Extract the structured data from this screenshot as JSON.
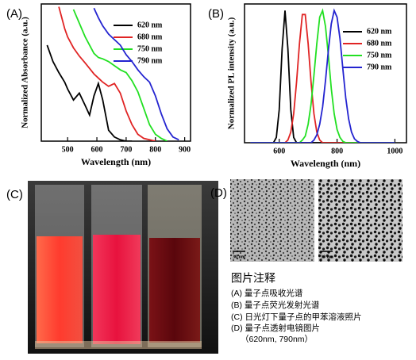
{
  "chart_data": [
    {
      "type": "line",
      "label": "(A)",
      "x_label": "Wavelength (nm)",
      "y_label": "Normalized Absorbance (a.u.)",
      "x": [
        430,
        450,
        470,
        490,
        500,
        520,
        540,
        560,
        575,
        590,
        605,
        620,
        640,
        660,
        680,
        700,
        720,
        740,
        760,
        780,
        800,
        820,
        840,
        860,
        880,
        900
      ],
      "xlim": [
        410,
        920
      ],
      "ylim": [
        0,
        1
      ],
      "xticks": [
        500,
        600,
        700,
        800,
        900
      ],
      "series": [
        {
          "name": "620 nm",
          "color": "#000000",
          "values": [
            0.7,
            0.58,
            0.5,
            0.43,
            0.38,
            0.3,
            0.35,
            0.26,
            0.19,
            0.33,
            0.42,
            0.3,
            0.08,
            0.03,
            0.01,
            0,
            0,
            null,
            null,
            null,
            null,
            null,
            null,
            null,
            null,
            null
          ]
        },
        {
          "name": "680 nm",
          "color": "#e02424",
          "values": [
            null,
            null,
            0.98,
            0.82,
            0.76,
            0.68,
            0.62,
            0.57,
            0.53,
            0.49,
            0.46,
            0.43,
            0.4,
            0.42,
            0.35,
            0.22,
            0.12,
            0.05,
            0.02,
            0.01,
            0,
            null,
            null,
            null,
            null,
            null
          ]
        },
        {
          "name": "750 nm",
          "color": "#22e022",
          "values": [
            null,
            null,
            null,
            null,
            null,
            0.96,
            0.86,
            0.76,
            0.7,
            0.64,
            0.61,
            0.6,
            0.58,
            0.55,
            0.52,
            0.5,
            0.44,
            0.36,
            0.24,
            0.12,
            0.05,
            0.02,
            0,
            null,
            null,
            null
          ]
        },
        {
          "name": "790 nm",
          "color": "#2424d0",
          "values": [
            null,
            null,
            null,
            null,
            null,
            null,
            null,
            null,
            null,
            0.97,
            0.9,
            0.84,
            0.78,
            0.74,
            0.7,
            0.63,
            0.58,
            0.52,
            0.47,
            0.43,
            0.33,
            0.2,
            0.09,
            0.03,
            0.01,
            null
          ]
        }
      ]
    },
    {
      "type": "line",
      "label": "(B)",
      "x_label": "Wavelength (nm)",
      "y_label": "Normalized PL intensity (a.u.)",
      "x": [
        500,
        580,
        590,
        600,
        610,
        620,
        630,
        640,
        650,
        660,
        670,
        680,
        690,
        700,
        710,
        720,
        730,
        740,
        750,
        760,
        770,
        780,
        790,
        800,
        810,
        820,
        830,
        840,
        850,
        860,
        870,
        880,
        1000
      ],
      "xlim": [
        480,
        1040
      ],
      "ylim": [
        0,
        1.05
      ],
      "xticks": [
        600,
        800,
        1000
      ],
      "series": [
        {
          "name": "620 nm",
          "color": "#000000",
          "values": [
            0,
            0,
            0.04,
            0.25,
            0.71,
            1,
            0.71,
            0.25,
            0.04,
            0,
            0,
            0,
            0,
            0,
            0,
            0,
            0,
            0,
            0,
            0,
            0,
            0,
            0,
            0,
            0,
            0,
            0,
            0,
            0,
            0,
            0,
            0,
            0
          ]
        },
        {
          "name": "680 nm",
          "color": "#e02424",
          "values": [
            0,
            0,
            0,
            0,
            0,
            0,
            0.02,
            0.08,
            0.22,
            0.46,
            0.75,
            0.97,
            0.97,
            0.75,
            0.46,
            0.22,
            0.08,
            0.02,
            0,
            0,
            0,
            0,
            0,
            0,
            0,
            0,
            0,
            0,
            0,
            0,
            0,
            0,
            0
          ]
        },
        {
          "name": "750 nm",
          "color": "#22e022",
          "values": [
            0,
            0,
            0,
            0,
            0,
            0,
            0,
            0,
            0,
            0,
            0,
            0.02,
            0.05,
            0.14,
            0.29,
            0.51,
            0.75,
            0.95,
            1,
            0.88,
            0.66,
            0.41,
            0.22,
            0.1,
            0.04,
            0.01,
            0,
            0,
            0,
            0,
            0,
            0,
            0
          ]
        },
        {
          "name": "790 nm",
          "color": "#2424d0",
          "values": [
            0,
            0,
            0,
            0,
            0,
            0,
            0,
            0,
            0,
            0,
            0,
            0,
            0,
            0,
            0,
            0.02,
            0.06,
            0.14,
            0.27,
            0.47,
            0.7,
            0.9,
            1,
            0.95,
            0.79,
            0.56,
            0.34,
            0.18,
            0.08,
            0.03,
            0.01,
            0,
            0
          ]
        }
      ]
    }
  ],
  "photo": {
    "label": "(C)"
  },
  "tem": {
    "label": "(D)",
    "scale_bars": [
      "30 nm",
      "30 nm"
    ]
  },
  "caption": {
    "title": "图片注释",
    "items": [
      "(A) 量子点吸收光谱",
      "(B) 量子点荧光发射光谱",
      "(C) 日光灯下量子点的甲苯溶液照片",
      "(D) 量子点透射电镜图片",
      "（620nm, 790nm）"
    ]
  }
}
